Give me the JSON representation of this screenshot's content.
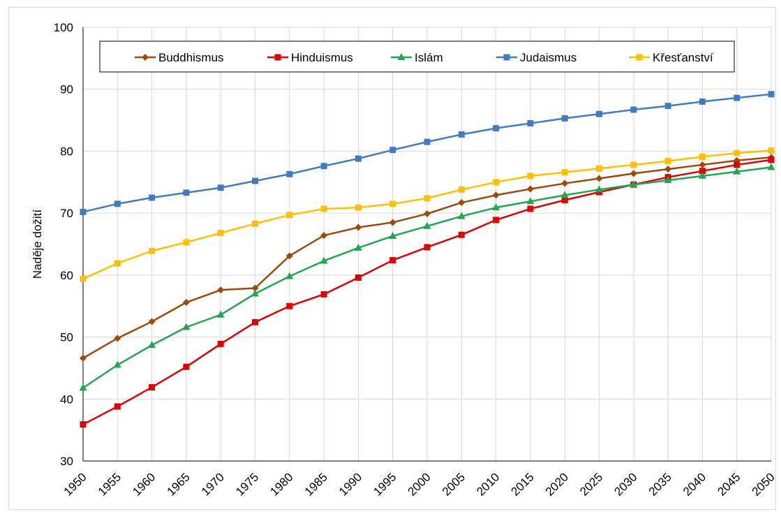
{
  "chart_data": {
    "type": "line",
    "title": "",
    "xlabel": "",
    "ylabel": "Naděje dožití",
    "ylim": [
      30,
      100
    ],
    "yticks": [
      30,
      40,
      50,
      60,
      70,
      80,
      90,
      100
    ],
    "grid": true,
    "legend_position": "top",
    "x": [
      "1950",
      "1955",
      "1960",
      "1965",
      "1970",
      "1975",
      "1980",
      "1985",
      "1990",
      "1995",
      "2000",
      "2005",
      "2010",
      "2015",
      "2020",
      "2025",
      "2030",
      "2035",
      "2040",
      "2045",
      "2050"
    ],
    "series": [
      {
        "name": "Buddhismus",
        "color": "#9c4a0c",
        "marker": "diamond",
        "values": [
          46.6,
          49.8,
          52.5,
          55.6,
          57.6,
          57.9,
          63.1,
          66.4,
          67.7,
          68.5,
          69.9,
          71.7,
          72.9,
          73.9,
          74.8,
          75.6,
          76.4,
          77.1,
          77.8,
          78.5,
          79.0
        ]
      },
      {
        "name": "Hinduismus",
        "color": "#e00000",
        "marker": "square",
        "values": [
          35.9,
          38.8,
          41.9,
          45.2,
          48.9,
          52.4,
          55.0,
          56.9,
          59.6,
          62.4,
          64.5,
          66.5,
          68.9,
          70.7,
          72.1,
          73.4,
          74.6,
          75.8,
          76.8,
          77.8,
          78.6
        ]
      },
      {
        "name": "Islám",
        "color": "#1fa851",
        "marker": "triangle",
        "values": [
          41.8,
          45.5,
          48.7,
          51.6,
          53.6,
          57.0,
          59.8,
          62.3,
          64.4,
          66.3,
          67.9,
          69.5,
          70.9,
          71.9,
          72.9,
          73.8,
          74.6,
          75.3,
          76.0,
          76.7,
          77.4
        ]
      },
      {
        "name": "Judaismus",
        "color": "#3f7cc1",
        "marker": "square",
        "values": [
          70.2,
          71.5,
          72.5,
          73.3,
          74.1,
          75.2,
          76.3,
          77.6,
          78.8,
          80.2,
          81.5,
          82.7,
          83.7,
          84.5,
          85.3,
          86.0,
          86.7,
          87.3,
          88.0,
          88.6,
          89.2
        ]
      },
      {
        "name": "Křesťanství",
        "color": "#ffc000",
        "marker": "square",
        "values": [
          59.4,
          61.9,
          63.9,
          65.3,
          66.8,
          68.3,
          69.7,
          70.7,
          70.9,
          71.5,
          72.4,
          73.8,
          75.0,
          76.0,
          76.6,
          77.2,
          77.8,
          78.4,
          79.1,
          79.7,
          80.1
        ]
      }
    ]
  }
}
